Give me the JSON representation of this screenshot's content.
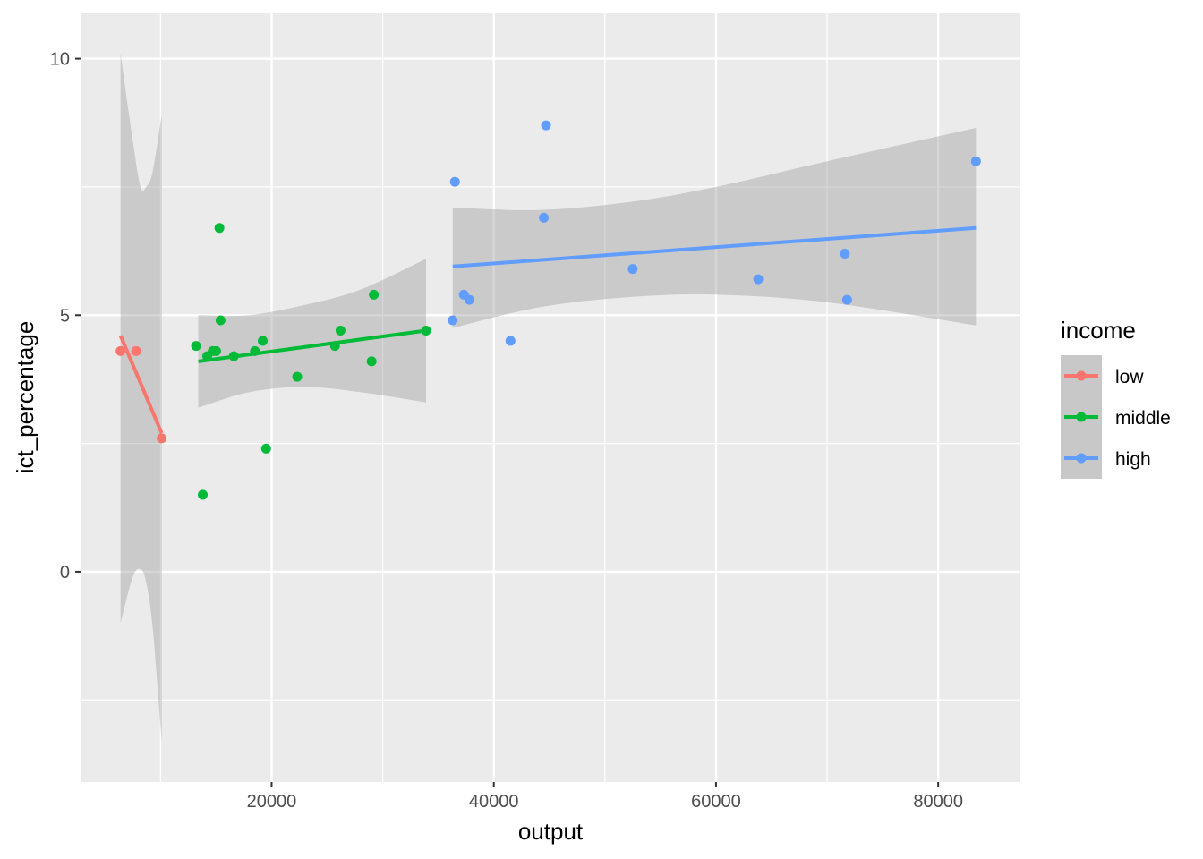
{
  "chart_data": {
    "type": "scatter",
    "xlabel": "output",
    "ylabel": "ict_percentage",
    "xlim": [
      2800,
      87400
    ],
    "ylim": [
      -4.1,
      10.9
    ],
    "x_ticks": [
      {
        "value": 20000,
        "label": "20000"
      },
      {
        "value": 40000,
        "label": "40000"
      },
      {
        "value": 60000,
        "label": "60000"
      },
      {
        "value": 80000,
        "label": "80000"
      }
    ],
    "y_ticks": [
      {
        "value": 0,
        "label": "0"
      },
      {
        "value": 5,
        "label": "5"
      },
      {
        "value": 10,
        "label": "10"
      }
    ],
    "grid": true,
    "legend": {
      "title": "income",
      "placement": "right"
    },
    "series": [
      {
        "name": "low",
        "color": "#F8766D",
        "points": [
          [
            6400,
            4.3
          ],
          [
            7800,
            4.3
          ],
          [
            10100,
            2.6
          ]
        ],
        "fit": [
          [
            6400,
            4.6
          ],
          [
            10100,
            2.7
          ]
        ],
        "band_upper": [
          [
            6400,
            10.1
          ],
          [
            7500,
            8.4
          ],
          [
            8200,
            7.5
          ],
          [
            8700,
            7.5
          ],
          [
            9300,
            7.8
          ],
          [
            10100,
            8.9
          ]
        ],
        "band_lower": [
          [
            6400,
            -1.0
          ],
          [
            7500,
            -0.1
          ],
          [
            8200,
            0.05
          ],
          [
            8700,
            -0.2
          ],
          [
            9300,
            -1.1
          ],
          [
            10100,
            -3.3
          ]
        ]
      },
      {
        "name": "middle",
        "color": "#00BA38",
        "points": [
          [
            13200,
            4.4
          ],
          [
            13800,
            1.5
          ],
          [
            14200,
            4.2
          ],
          [
            14700,
            4.3
          ],
          [
            15000,
            4.3
          ],
          [
            15300,
            6.7
          ],
          [
            15400,
            4.9
          ],
          [
            16600,
            4.2
          ],
          [
            18500,
            4.3
          ],
          [
            19200,
            4.5
          ],
          [
            19500,
            2.4
          ],
          [
            22300,
            3.8
          ],
          [
            25700,
            4.4
          ],
          [
            26200,
            4.7
          ],
          [
            29000,
            4.1
          ],
          [
            29200,
            5.4
          ],
          [
            33900,
            4.7
          ]
        ],
        "fit": [
          [
            13400,
            4.1
          ],
          [
            33900,
            4.7
          ]
        ],
        "band_upper": [
          [
            13400,
            5.0
          ],
          [
            18000,
            5.0
          ],
          [
            23000,
            5.2
          ],
          [
            28000,
            5.5
          ],
          [
            33900,
            6.1
          ]
        ],
        "band_lower": [
          [
            13400,
            3.2
          ],
          [
            18000,
            3.5
          ],
          [
            23000,
            3.6
          ],
          [
            28000,
            3.5
          ],
          [
            33900,
            3.3
          ]
        ]
      },
      {
        "name": "high",
        "color": "#619CFF",
        "points": [
          [
            36300,
            4.9
          ],
          [
            36500,
            7.6
          ],
          [
            37300,
            5.4
          ],
          [
            37800,
            5.3
          ],
          [
            41500,
            4.5
          ],
          [
            44500,
            6.9
          ],
          [
            44700,
            8.7
          ],
          [
            52500,
            5.9
          ],
          [
            63800,
            5.7
          ],
          [
            71600,
            6.2
          ],
          [
            71800,
            5.3
          ],
          [
            83400,
            8.0
          ]
        ],
        "fit": [
          [
            36300,
            5.95
          ],
          [
            83400,
            6.7
          ]
        ],
        "band_upper": [
          [
            36300,
            7.1
          ],
          [
            44000,
            7.05
          ],
          [
            52000,
            7.2
          ],
          [
            60000,
            7.5
          ],
          [
            70000,
            8.0
          ],
          [
            83400,
            8.65
          ]
        ],
        "band_lower": [
          [
            36300,
            4.75
          ],
          [
            44000,
            5.15
          ],
          [
            52000,
            5.35
          ],
          [
            60000,
            5.4
          ],
          [
            70000,
            5.25
          ],
          [
            83400,
            4.8
          ]
        ]
      }
    ]
  }
}
